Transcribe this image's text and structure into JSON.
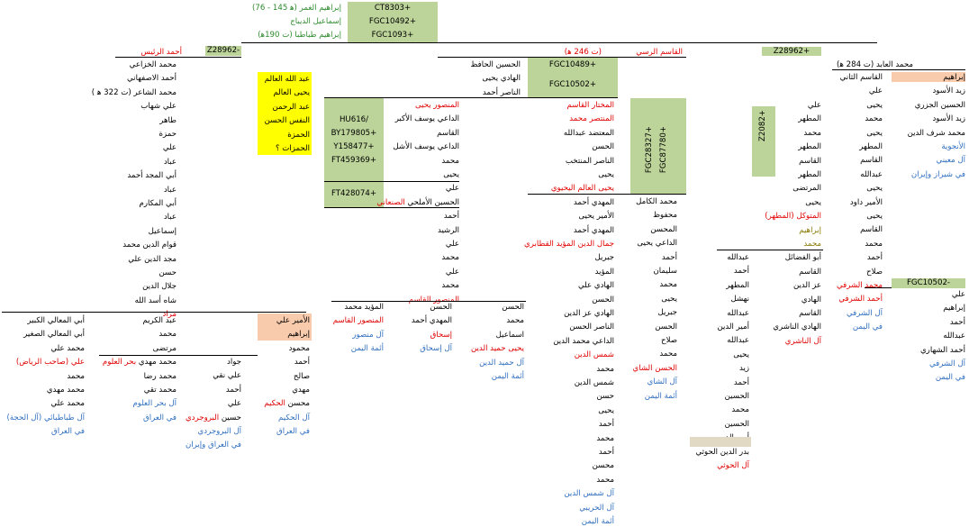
{
  "top_header": {
    "lines": [
      "إبراهيم الغمر (ﻫ 145 - 76)",
      "إسماعيل الديباج",
      "إبراهيم طباطبا (ت 190ﻫ)"
    ],
    "codes": [
      "CT8303+",
      "FGC10492+",
      "FGC1093+"
    ]
  },
  "col_far_right": {
    "header": "محمد العابد (ت 284 ﻫ)",
    "code_top": "Z28962+",
    "list_a": [
      "إبراهيم",
      "زيد الأسود",
      "الحسين الجزري",
      "زيد الأسود",
      "محمد شرف الدين",
      "الأنجوية",
      "آل معيني",
      "في شيراز وإيران"
    ],
    "list_b": [
      "القاسم الثاني",
      "علي",
      "يحيى",
      "محمد",
      "يحيى",
      "المطهر",
      "القاسم",
      "عبدالله",
      "يحيى",
      "الأمير داود",
      "يحيى",
      "القاسم",
      "محمد",
      "أحمد",
      "صلاح",
      "محمد الشرفي",
      "أحمد الشرفي",
      "آل الشرفي",
      "في اليمن"
    ],
    "code_bottom": "FGC10502-",
    "list_c": [
      "علي",
      "إبراهيم",
      "أحمد",
      "عبدالله",
      "أحمد الشهاري",
      "آل الشرفي",
      "في اليمن"
    ]
  },
  "col_z2082": {
    "code": "Z2082+",
    "list": [
      "علي",
      "المطهر",
      "محمد",
      "المطهر",
      "القاسم",
      "المطهر",
      "المرتضى",
      "يحيى",
      "المتوكل (المطهر)",
      "إبراهيم",
      "محمد",
      "أبو الفضائل",
      "القاسم",
      "عز الدين",
      "الهادي",
      "القاسم",
      "الهادي الناشري",
      "آل الناشري"
    ]
  },
  "col_abdullah": {
    "list": [
      "عبدالله",
      "أحمد",
      "المطهر",
      "نهشل",
      "عبدالله",
      "أمير الدين",
      "عبدالله",
      "يحيى",
      "زيد",
      "أحمد",
      "الحسين",
      "محمد",
      "الحسين",
      "أمير الدين",
      "بدر الدين الحوثي",
      "آل الحوثي"
    ]
  },
  "col_rassi": {
    "header": "القاسم الرسي",
    "header_note": "(ت 246 ﻫ)",
    "codes": [
      "FGC10489+",
      "FGC10502+"
    ],
    "vert_codes": [
      "FGC28327+",
      "FGC87780+"
    ],
    "hafez": [
      "الحسين الحافظ",
      "الهادي يحيى",
      "الناصر أحمد"
    ],
    "list_a": [
      "المختار القاسم",
      "المنتصر محمد",
      "المعتضد عبدالله",
      "الحسن",
      "الناصر المنتخب",
      "يحيى",
      "يحيى العالم اليحيوي",
      "المهدي أحمد",
      "الأمير يحيى",
      "المهدي أحمد",
      "جمال الدين المؤيد القطابري",
      "جبريل",
      "المؤيد",
      "الهادي علي",
      "الحسن",
      "الهادي عز الدين",
      "الناصر الحسن",
      "الداعي محمد الدين",
      "شمس الدين",
      "محمد",
      "شمس الدين",
      "حسن",
      "يحيى",
      "أحمد",
      "محمد",
      "أحمد",
      "محسن",
      "محمد",
      "آل شمس الدين",
      "آل الحريبي",
      "أئمة اليمن"
    ],
    "list_b": [
      "محمد الكامل",
      "محفوظ",
      "المحسن",
      "الداعي يحيى",
      "أحمد",
      "سليمان",
      "محمد",
      "يحيى",
      "جبريل",
      "الحسن",
      "صلاح",
      "محمد",
      "الحسن الشاي",
      "آل الشاي",
      "أئمة اليمن"
    ]
  },
  "col_mansur": {
    "list_a": [
      "المنصور يحيى",
      "الداعي يوسف الأكبر",
      "القاسم",
      "الداعي يوسف الأشل",
      "محمد",
      "يحيى",
      "علي",
      "الحسين الأملحي الصنعاني",
      "أحمد",
      "الرشيد",
      "علي",
      "محمد",
      "علي",
      "محمد",
      "المنصور القاسم"
    ],
    "codes": [
      "HU616/",
      "BY179805+",
      "Y158477+",
      "FT459369+"
    ],
    "code2": "FT428074+",
    "sub_a": [
      "الحسن",
      "محمد",
      "اسماعيل",
      "يحيى حميد الدين",
      "آل حميد الدين",
      "أئمة اليمن"
    ],
    "sub_b": [
      "الحسن",
      "المهدي أحمد",
      "إسحاق",
      "آل إسحاق"
    ],
    "sub_c": [
      "المؤيد محمد",
      "المنصور القاسم",
      "آل منصور",
      "أئمة اليمن"
    ]
  },
  "col_alim": {
    "list": [
      "عبد الله العالم",
      "يحيى العالم",
      "عبد الرحمن",
      "النفس الحسن",
      "الحمزة",
      "الحمزات ؟"
    ]
  },
  "col_rais": {
    "header": "أحمد الرئيس",
    "code": "Z28962-",
    "list": [
      "محمد الخزاعي",
      "أحمد الاصفهاني",
      "محمد الشاعر (ت 322 ﻫ )",
      "علي شهاب",
      "طاهر",
      "حمزة",
      "علي",
      "عباد",
      "أبي المجد أحمد",
      "عباد",
      "أبي المكارم",
      "عباد",
      "إسماعيل",
      "قوام الدين محمد",
      "مجد الدين علي",
      "حسن",
      "جلال الدين",
      "شاه أسد الله",
      "مراد"
    ]
  },
  "bottom_left": {
    "a": [
      "أبي المعالي الكبير",
      "أبي المعالي الصغير",
      "محمد علي",
      "علي (صاحب الرياض)",
      "محمد",
      "محمد مهدي",
      "محمد علي",
      "آل طباطبائي (آل الحجة)",
      "في العراق"
    ],
    "b": [
      "عبد الكريم",
      "محمد",
      "مرتضى",
      "محمد مهدي بحر العلوم",
      "محمد رضا",
      "محمد تقي",
      "آل بحر العلوم",
      "في العراق"
    ],
    "c": [
      "جواد",
      "علي نقي",
      "أحمد",
      "علي",
      "حسين البروجردي",
      "آل البروجردي",
      "في العراق وإيران"
    ],
    "d": [
      "الأمير علي",
      "إبراهيم",
      "محمود",
      "أحمد",
      "صالح",
      "مهدي",
      "محسن الحكيم",
      "آل الحكيم",
      "في العراق"
    ]
  }
}
